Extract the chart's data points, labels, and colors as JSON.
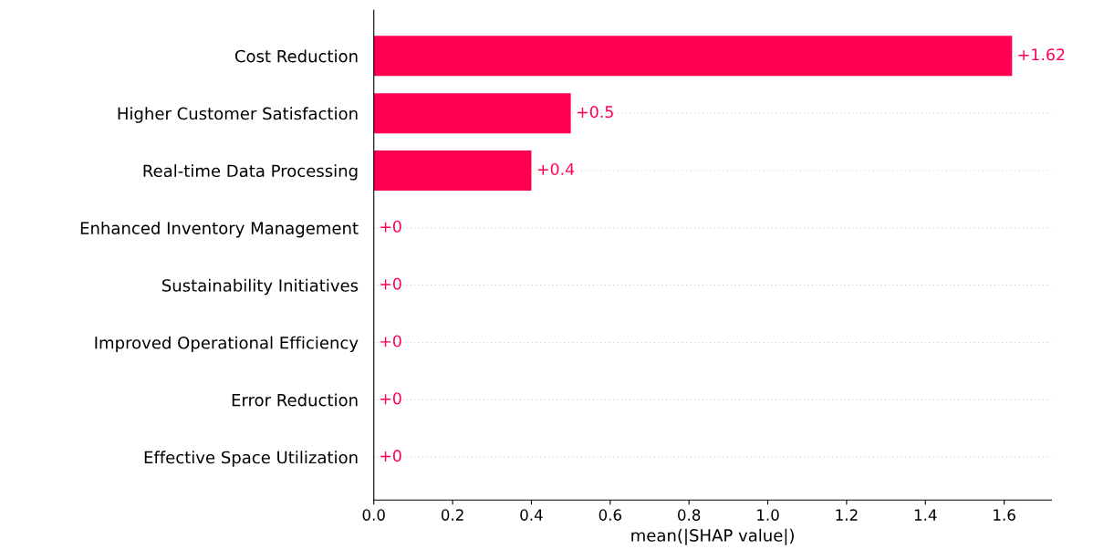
{
  "chart_data": {
    "type": "bar",
    "orientation": "horizontal",
    "categories": [
      "Cost Reduction",
      "Higher Customer Satisfaction",
      "Real-time Data Processing",
      "Enhanced Inventory Management",
      "Sustainability Initiatives",
      "Improved Operational Efficiency",
      "Error Reduction",
      "Effective Space Utilization"
    ],
    "values": [
      1.62,
      0.5,
      0.4,
      0,
      0,
      0,
      0,
      0
    ],
    "value_labels": [
      "+1.62",
      "+0.5",
      "+0.4",
      "+0",
      "+0",
      "+0",
      "+0",
      "+0"
    ],
    "color": "#ff0051",
    "xlim": [
      0,
      1.72
    ],
    "xticks": [
      {
        "value": 0,
        "label": "0.0"
      },
      {
        "value": 0.2,
        "label": "0.2"
      },
      {
        "value": 0.4,
        "label": "0.4"
      },
      {
        "value": 0.6,
        "label": "0.6"
      },
      {
        "value": 0.8,
        "label": "0.8"
      },
      {
        "value": 1.0,
        "label": "1.0"
      },
      {
        "value": 1.2,
        "label": "1.2"
      },
      {
        "value": 1.4,
        "label": "1.4"
      },
      {
        "value": 1.6,
        "label": "1.6"
      }
    ],
    "xlabel": "mean(|SHAP value|)",
    "grid": "y",
    "line_style": "dotted"
  }
}
